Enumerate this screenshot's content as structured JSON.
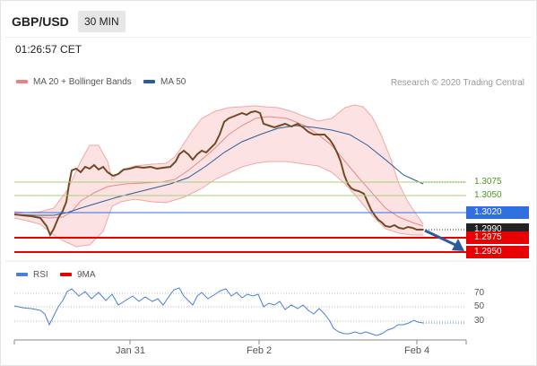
{
  "header": {
    "symbol": "GBP/USD",
    "timeframe": "30 MIN",
    "time": "01:26:57 CET"
  },
  "legend": {
    "bollinger": {
      "label": "MA 20 + Bollinger Bands",
      "color": "#f08080"
    },
    "ma50": {
      "label": "MA 50",
      "color": "#2a5c9a"
    },
    "credit": "Research © 2020 Trading Central"
  },
  "levels": [
    {
      "value": "1.3075",
      "kind": "resistance",
      "color": "#4a9a1a"
    },
    {
      "value": "1.3050",
      "kind": "resistance",
      "color": "#4a9a1a"
    },
    {
      "value": "1.3020",
      "kind": "pivot",
      "color": "#2f6fe0"
    },
    {
      "value": "1.2990",
      "kind": "last",
      "color": "#222222"
    },
    {
      "value": "1.2975",
      "kind": "support",
      "color": "#e60000"
    },
    {
      "value": "1.2950",
      "kind": "support",
      "color": "#e60000"
    }
  ],
  "rsi": {
    "legend": [
      {
        "label": "RSI",
        "color": "#4a7fd8"
      },
      {
        "label": "9MA",
        "color": "#e60000"
      }
    ],
    "levels": [
      "70",
      "50",
      "30"
    ]
  },
  "xaxis": [
    "Jan 31",
    "Feb 2",
    "Feb 4"
  ]
}
